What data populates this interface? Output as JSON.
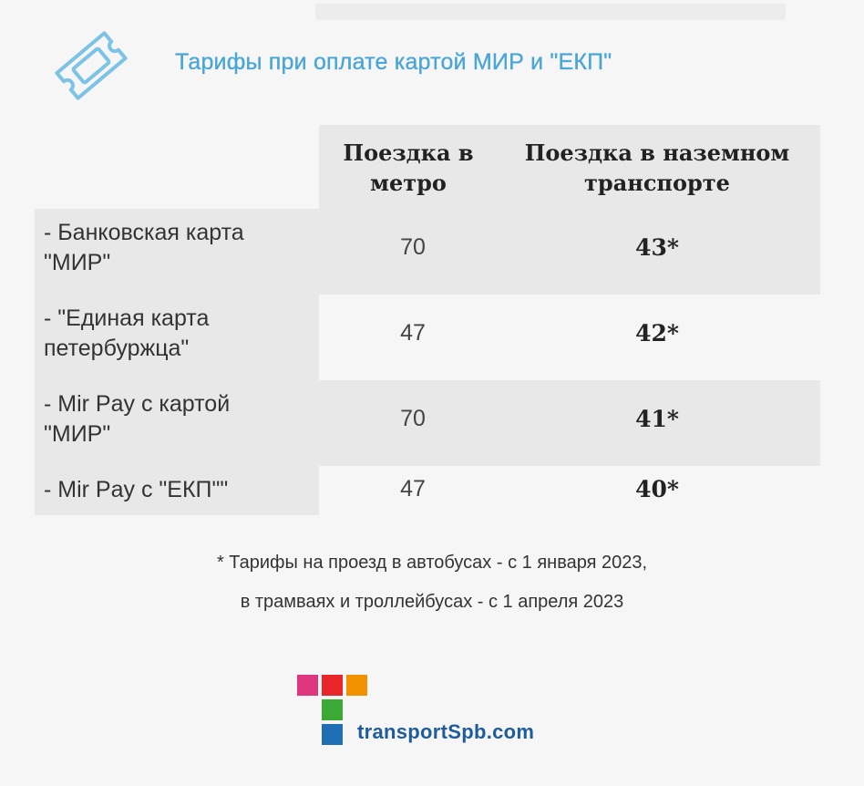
{
  "title": "Тарифы при оплате картой МИР и \"ЕКП\"",
  "table": {
    "header": {
      "metro": "Поездка в метро",
      "ground": "Поездка в наземном транспорте"
    },
    "rows": [
      {
        "label": "- Банковская карта\n\"МИР\"",
        "metro": "70",
        "ground": "43*"
      },
      {
        "label": "- \"Единая карта\nпетербуржца\"",
        "metro": "47",
        "ground": "42*"
      },
      {
        "label": "- Mir Pay с картой\n\"МИР\"",
        "metro": "70",
        "ground": "41*"
      },
      {
        "label": "- Mir Pay с \"ЕКП\"\"",
        "metro": "47",
        "ground": "40*"
      }
    ]
  },
  "footnote": {
    "line1": "* Тарифы на проезд в автобусах - с 1 января 2023,",
    "line2": "в трамваях и троллейбусах - с 1 апреля 2023"
  },
  "logo": {
    "text": "transportSpb.com",
    "colors": [
      "#e0357f",
      "#e8262a",
      "#f39200",
      "#3aa935",
      "#1f6fb5"
    ]
  },
  "icons": {
    "ticket": "ticket-icon"
  },
  "colors": {
    "accent": "#4aa6d6",
    "row_shade": "#e8e8e8"
  }
}
